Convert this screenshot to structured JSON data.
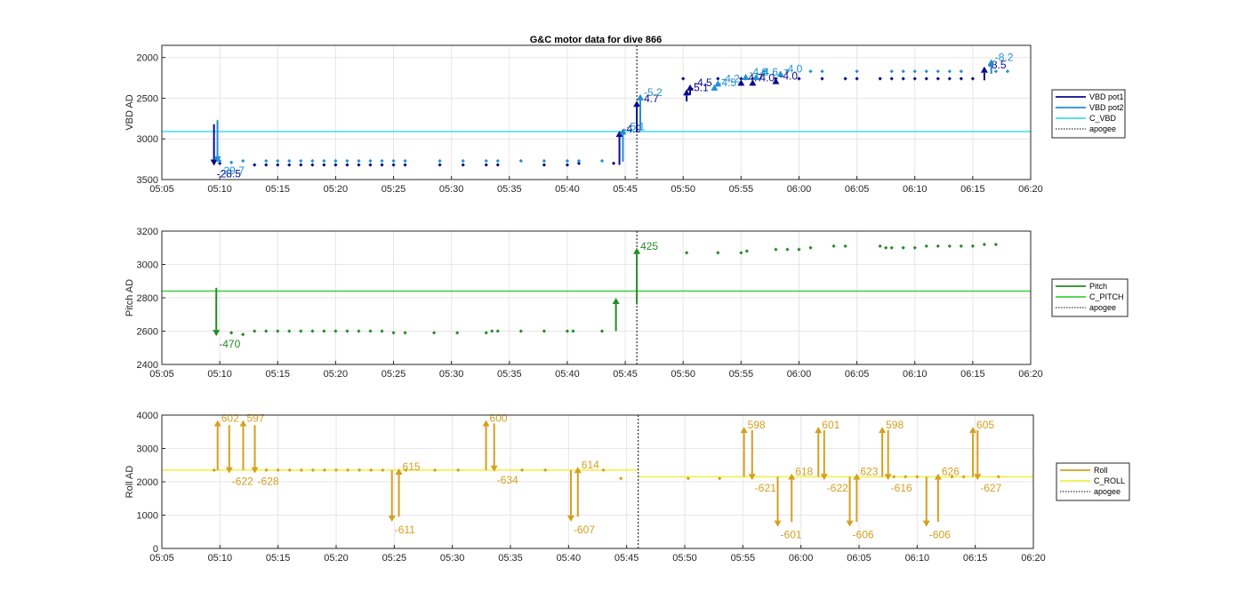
{
  "chart_data": [
    {
      "type": "line",
      "title": "G&C motor data for dive 866",
      "ylabel": "VBD AD",
      "xlim": [
        "05:05",
        "06:20"
      ],
      "x_ticks": [
        "05:05",
        "05:10",
        "05:15",
        "05:20",
        "05:25",
        "05:30",
        "05:35",
        "05:40",
        "05:45",
        "05:50",
        "05:55",
        "06:00",
        "06:05",
        "06:10",
        "06:15",
        "06:20"
      ],
      "ylim": [
        3500,
        1850
      ],
      "y_reversed": true,
      "y_ticks": [
        "2000",
        "2500",
        "3000",
        "3500"
      ],
      "grid": true,
      "legend_position": "right",
      "legend": [
        {
          "name": "VBD pot1",
          "color": "#0a0a8c",
          "style": "solid"
        },
        {
          "name": "VBD pot2",
          "color": "#1f90d0",
          "style": "solid"
        },
        {
          "name": "C_VBD",
          "color": "#40e0e8",
          "style": "solid"
        },
        {
          "name": "apogee",
          "color": "#000000",
          "style": "dotted"
        }
      ],
      "reference_lines": [
        {
          "name": "C_VBD",
          "y": 2910,
          "color": "#40e0e8"
        },
        {
          "name": "apogee",
          "x": "05:46",
          "color": "#000000"
        }
      ],
      "series": [
        {
          "name": "VBD pot1",
          "color": "#0a0a8c",
          "x": [
            "05:10",
            "05:13",
            "05:14",
            "05:15",
            "05:16",
            "05:17",
            "05:18",
            "05:19",
            "05:20",
            "05:21",
            "05:22",
            "05:23",
            "05:24",
            "05:25",
            "05:26",
            "05:29",
            "05:31",
            "05:33",
            "05:34",
            "05:38",
            "05:40",
            "05:41",
            "05:44",
            "05:50",
            "05:53",
            "05:55",
            "05:56",
            "05:58",
            "06:00",
            "06:02",
            "06:04",
            "06:05",
            "06:07",
            "06:08",
            "06:09",
            "06:10",
            "06:11",
            "06:12",
            "06:13",
            "06:14",
            "06:15"
          ],
          "values": [
            3300,
            3320,
            3320,
            3320,
            3320,
            3320,
            3320,
            3320,
            3320,
            3320,
            3320,
            3320,
            3320,
            3320,
            3320,
            3320,
            3320,
            3320,
            3320,
            3320,
            3320,
            3300,
            3300,
            2260,
            2260,
            2260,
            2260,
            2260,
            2260,
            2260,
            2260,
            2260,
            2260,
            2260,
            2260,
            2260,
            2260,
            2260,
            2260,
            2260,
            2260
          ]
        },
        {
          "name": "VBD pot2",
          "color": "#1f90d0",
          "x": [
            "05:10",
            "05:11",
            "05:12",
            "05:14",
            "05:15",
            "05:16",
            "05:17",
            "05:18",
            "05:19",
            "05:20",
            "05:21",
            "05:22",
            "05:23",
            "05:24",
            "05:25",
            "05:26",
            "05:29",
            "05:31",
            "05:33",
            "05:34",
            "05:36",
            "05:38",
            "05:40",
            "05:41",
            "05:43",
            "05:57",
            "05:59",
            "06:01",
            "06:02",
            "06:05",
            "06:08",
            "06:09",
            "06:10",
            "06:11",
            "06:12",
            "06:13",
            "06:14",
            "06:17",
            "06:18"
          ],
          "values": [
            3270,
            3290,
            3270,
            3270,
            3270,
            3270,
            3270,
            3270,
            3270,
            3270,
            3270,
            3270,
            3270,
            3270,
            3270,
            3270,
            3270,
            3270,
            3270,
            3270,
            3270,
            3270,
            3270,
            3270,
            3270,
            2170,
            2170,
            2170,
            2170,
            2170,
            2170,
            2170,
            2170,
            2170,
            2170,
            2170,
            2170,
            2170,
            2170
          ]
        }
      ],
      "moves": [
        {
          "x": "05:09.5",
          "from": 2820,
          "to": 3330,
          "label": "-28.5",
          "sensor": "VBD pot1"
        },
        {
          "x": "05:09.8",
          "from": 2770,
          "to": 3290,
          "label": "-29.7",
          "sensor": "VBD pot2"
        },
        {
          "x": "05:44.5",
          "from": 3320,
          "to": 2900,
          "label": "-4.9",
          "sensor": "VBD pot1"
        },
        {
          "x": "05:44.8",
          "from": 3280,
          "to": 2870,
          "label": "-5.1",
          "sensor": "VBD pot2"
        },
        {
          "x": "05:46",
          "from": 2920,
          "to": 2530,
          "label": "-4.7",
          "sensor": "VBD pot1"
        },
        {
          "x": "05:46.3",
          "from": 2880,
          "to": 2450,
          "label": "-5.2",
          "sensor": "VBD pot2"
        },
        {
          "x": "05:50.3",
          "from": 2540,
          "to": 2390,
          "label": "-5.1",
          "sensor": "VBD pot1"
        },
        {
          "x": "05:50.6",
          "from": 2460,
          "to": 2330,
          "label": "-4.5",
          "sensor": "VBD pot1"
        },
        {
          "x": "05:52.7",
          "from": 2400,
          "to": 2330,
          "label": "-4.5",
          "sensor": "VBD pot2"
        },
        {
          "x": "05:53",
          "from": 2350,
          "to": 2280,
          "label": "-4.2",
          "sensor": "VBD pot2"
        },
        {
          "x": "05:55",
          "from": 2330,
          "to": 2270,
          "label": "-4.7",
          "sensor": "VBD pot1"
        },
        {
          "x": "05:55.4",
          "from": 2280,
          "to": 2200,
          "label": "-4.0",
          "sensor": "VBD pot2"
        },
        {
          "x": "05:56",
          "from": 2310,
          "to": 2270,
          "label": "-4.0",
          "sensor": "VBD pot1"
        },
        {
          "x": "05:56.3",
          "from": 2260,
          "to": 2200,
          "label": "-4.6",
          "sensor": "VBD pot2"
        },
        {
          "x": "05:58",
          "from": 2300,
          "to": 2250,
          "label": "-4.0",
          "sensor": "VBD pot1"
        },
        {
          "x": "05:58.4",
          "from": 2220,
          "to": 2160,
          "label": "-4.0",
          "sensor": "VBD pot2"
        },
        {
          "x": "06:16",
          "from": 2280,
          "to": 2110,
          "label": "-8.5",
          "sensor": "VBD pot1"
        },
        {
          "x": "06:16.6",
          "from": 2200,
          "to": 2020,
          "label": "-8.2",
          "sensor": "VBD pot2"
        }
      ]
    },
    {
      "type": "line",
      "title": "",
      "ylabel": "Pitch AD",
      "xlim": [
        "05:05",
        "06:20"
      ],
      "x_ticks": [
        "05:05",
        "05:10",
        "05:15",
        "05:20",
        "05:25",
        "05:30",
        "05:35",
        "05:40",
        "05:45",
        "05:50",
        "05:55",
        "06:00",
        "06:05",
        "06:10",
        "06:15",
        "06:20"
      ],
      "ylim": [
        2400,
        3200
      ],
      "y_ticks": [
        "2400",
        "2600",
        "2800",
        "3000",
        "3200"
      ],
      "grid": true,
      "legend_position": "right",
      "legend": [
        {
          "name": "Pitch",
          "color": "#238c23",
          "style": "solid"
        },
        {
          "name": "C_PITCH",
          "color": "#3cd23c",
          "style": "solid"
        },
        {
          "name": "apogee",
          "color": "#000000",
          "style": "dotted"
        }
      ],
      "reference_lines": [
        {
          "name": "C_PITCH",
          "y": 2840,
          "color": "#3cd23c"
        },
        {
          "name": "apogee",
          "x": "05:46",
          "color": "#000000"
        }
      ],
      "series": [
        {
          "name": "Pitch",
          "color": "#238c23",
          "x": [
            "05:11",
            "05:12",
            "05:13",
            "05:14",
            "05:15",
            "05:16",
            "05:17",
            "05:18",
            "05:19",
            "05:20",
            "05:21",
            "05:22",
            "05:23",
            "05:24",
            "05:25",
            "05:26",
            "05:28.5",
            "05:30.5",
            "05:33",
            "05:33.5",
            "05:34",
            "05:36",
            "05:38",
            "05:40",
            "05:40.5",
            "05:43",
            "05:50.3",
            "05:53",
            "05:55",
            "05:55.5",
            "05:58",
            "05:59",
            "06:00",
            "06:01",
            "06:03",
            "06:04",
            "06:07",
            "06:07.5",
            "06:08",
            "06:09",
            "06:10",
            "06:11",
            "06:12",
            "06:13",
            "06:14",
            "06:15",
            "06:16",
            "06:17"
          ],
          "values": [
            2590,
            2580,
            2600,
            2600,
            2600,
            2600,
            2600,
            2600,
            2600,
            2600,
            2600,
            2600,
            2600,
            2600,
            2590,
            2590,
            2590,
            2590,
            2590,
            2600,
            2600,
            2600,
            2600,
            2600,
            2600,
            2600,
            3070,
            3070,
            3070,
            3080,
            3090,
            3090,
            3090,
            3100,
            3110,
            3110,
            3110,
            3100,
            3100,
            3100,
            3100,
            3110,
            3110,
            3110,
            3110,
            3110,
            3120,
            3120
          ]
        }
      ],
      "moves": [
        {
          "x": "05:09.7",
          "from": 2860,
          "to": 2570,
          "label": "-470"
        },
        {
          "x": "05:44.2",
          "from": 2600,
          "to": 2800,
          "label": ""
        },
        {
          "x": "05:46",
          "from": 2760,
          "to": 3100,
          "label": "425"
        }
      ]
    },
    {
      "type": "line",
      "title": "",
      "ylabel": "Roll AD",
      "xlim": [
        "05:05",
        "06:20"
      ],
      "x_ticks": [
        "05:05",
        "05:10",
        "05:15",
        "05:20",
        "05:25",
        "05:30",
        "05:35",
        "05:40",
        "05:45",
        "05:50",
        "05:55",
        "06:00",
        "06:05",
        "06:10",
        "06:15",
        "06:20"
      ],
      "ylim": [
        0,
        4000
      ],
      "y_ticks": [
        "0",
        "1000",
        "2000",
        "3000",
        "4000"
      ],
      "grid": true,
      "legend_position": "right",
      "legend": [
        {
          "name": "Roll",
          "color": "#d4a020",
          "style": "solid"
        },
        {
          "name": "C_ROLL",
          "color": "#f0f040",
          "style": "solid"
        },
        {
          "name": "apogee",
          "color": "#000000",
          "style": "dotted"
        }
      ],
      "reference_lines": [
        {
          "name": "C_ROLL",
          "y": 2350,
          "x_to": "05:46",
          "color": "#f0f040"
        },
        {
          "name": "C_ROLL",
          "y": 2150,
          "x_from": "05:46",
          "color": "#f0f040"
        },
        {
          "name": "apogee",
          "x": "05:46",
          "color": "#000000"
        }
      ],
      "series": [
        {
          "name": "Roll",
          "color": "#d4a020",
          "x": [
            "05:09.5",
            "05:14",
            "05:15",
            "05:16",
            "05:17",
            "05:18",
            "05:19",
            "05:20",
            "05:21",
            "05:22",
            "05:23",
            "05:24",
            "05:26",
            "05:28.5",
            "05:30.5",
            "05:36",
            "05:38",
            "05:43",
            "05:44.5",
            "05:50.3",
            "05:53",
            "06:08",
            "06:09",
            "06:10",
            "06:13",
            "06:14",
            "06:17"
          ],
          "values": [
            2350,
            2350,
            2350,
            2350,
            2350,
            2350,
            2350,
            2350,
            2350,
            2350,
            2350,
            2350,
            2350,
            2350,
            2350,
            2350,
            2350,
            2350,
            2100,
            2100,
            2100,
            2150,
            2150,
            2150,
            2150,
            2150,
            2150
          ]
        }
      ],
      "moves": [
        {
          "x": "05:09.8",
          "from": 2350,
          "to": 3850,
          "label": "602"
        },
        {
          "x": "05:10.8",
          "from": 3700,
          "to": 2250,
          "label": "-622"
        },
        {
          "x": "05:12",
          "from": 2350,
          "to": 3850,
          "label": "597"
        },
        {
          "x": "05:13",
          "from": 3700,
          "to": 2250,
          "label": "-628"
        },
        {
          "x": "05:24.8",
          "from": 2350,
          "to": 800,
          "label": "-611"
        },
        {
          "x": "05:25.4",
          "from": 950,
          "to": 2400,
          "label": "615"
        },
        {
          "x": "05:32.9",
          "from": 2350,
          "to": 3850,
          "label": "600"
        },
        {
          "x": "05:33.6",
          "from": 3750,
          "to": 2300,
          "label": "-634"
        },
        {
          "x": "05:40.2",
          "from": 2350,
          "to": 800,
          "label": "-607"
        },
        {
          "x": "05:40.8",
          "from": 950,
          "to": 2450,
          "label": "614"
        },
        {
          "x": "05:55.1",
          "from": 2150,
          "to": 3650,
          "label": "598"
        },
        {
          "x": "05:55.8",
          "from": 3550,
          "to": 2050,
          "label": "-621"
        },
        {
          "x": "05:58",
          "from": 2150,
          "to": 650,
          "label": "-601"
        },
        {
          "x": "05:59.2",
          "from": 800,
          "to": 2250,
          "label": "618"
        },
        {
          "x": "06:01.5",
          "from": 2150,
          "to": 3650,
          "label": "601"
        },
        {
          "x": "06:02",
          "from": 3550,
          "to": 2050,
          "label": "-622"
        },
        {
          "x": "06:04.2",
          "from": 2150,
          "to": 650,
          "label": "-606"
        },
        {
          "x": "06:04.8",
          "from": 800,
          "to": 2250,
          "label": "623"
        },
        {
          "x": "06:07",
          "from": 2150,
          "to": 3650,
          "label": "598"
        },
        {
          "x": "06:07.5",
          "from": 3550,
          "to": 2050,
          "label": "-616"
        },
        {
          "x": "06:10.8",
          "from": 2150,
          "to": 650,
          "label": "-606"
        },
        {
          "x": "06:11.8",
          "from": 800,
          "to": 2250,
          "label": "626"
        },
        {
          "x": "06:14.8",
          "from": 2150,
          "to": 3650,
          "label": "605"
        },
        {
          "x": "06:15.2",
          "from": 3550,
          "to": 2050,
          "label": "-627"
        }
      ]
    }
  ]
}
